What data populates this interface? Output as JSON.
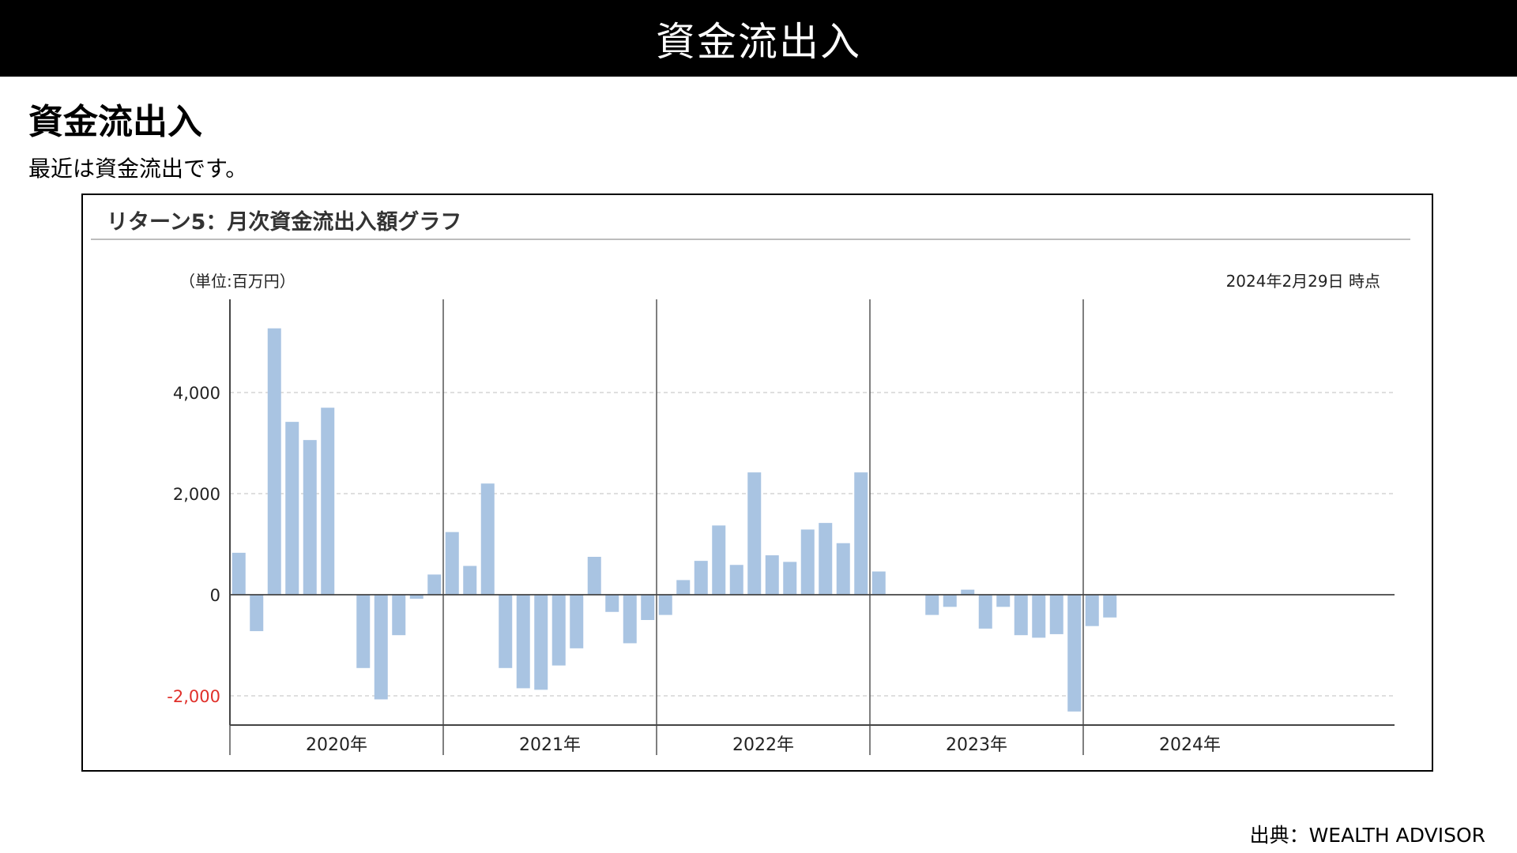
{
  "header": {
    "title": "資金流出入"
  },
  "section": {
    "heading": "資金流出入",
    "description": "最近は資金流出です。"
  },
  "chart": {
    "unit_note": "（単位:百万円）",
    "as_of": "2024年2月29日 時点"
  },
  "footer": {
    "source": "出典：WEALTH ADVISOR"
  },
  "colors": {
    "bar": "#a9c4e2",
    "negative_tick": "#e0302a",
    "grid": "#cccccc",
    "axis": "#333333"
  },
  "chart_data": {
    "type": "bar",
    "title": "リターン5：月次資金流出入額グラフ",
    "xlabel": "",
    "ylabel": "",
    "ylim": [
      -2600,
      5800
    ],
    "yticks": [
      {
        "value": 4000,
        "label": "4,000"
      },
      {
        "value": 2000,
        "label": "2,000"
      },
      {
        "value": 0,
        "label": "0"
      },
      {
        "value": -2000,
        "label": "-2,000"
      }
    ],
    "grid": true,
    "years": [
      {
        "label": "2020年",
        "values": [
          830,
          -720,
          5270,
          3420,
          3060,
          3700,
          10,
          -1450,
          -2070,
          -800,
          -80,
          400
        ]
      },
      {
        "label": "2021年",
        "values": [
          1240,
          570,
          2200,
          -1450,
          -1850,
          -1880,
          -1400,
          -1060,
          750,
          -340,
          -960,
          -500
        ]
      },
      {
        "label": "2022年",
        "values": [
          -400,
          290,
          670,
          1370,
          590,
          2420,
          780,
          650,
          1290,
          1420,
          1020,
          2420
        ]
      },
      {
        "label": "2023年",
        "values": [
          460,
          null,
          null,
          -400,
          -240,
          100,
          -670,
          -240,
          -800,
          -850,
          -780,
          -2310
        ]
      },
      {
        "label": "2024年",
        "values": [
          -620,
          -450
        ]
      }
    ]
  }
}
